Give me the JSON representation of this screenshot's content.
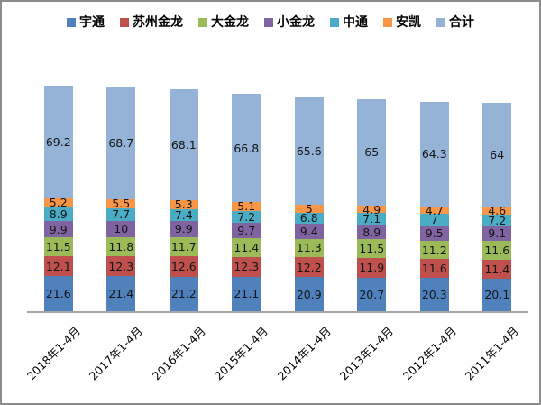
{
  "chart_data": {
    "type": "bar",
    "stacked": true,
    "title": "",
    "xlabel": "",
    "ylabel": "",
    "legend_position": "top",
    "grid": false,
    "y_axis_visible": false,
    "categories": [
      "2018年1-4月",
      "2017年1-4月",
      "2016年1-4月",
      "2015年1-4月",
      "2014年1-4月",
      "2013年1-4月",
      "2012年1-4月",
      "2011年1-4月"
    ],
    "series": [
      {
        "name": "宇通",
        "color": "#4F81BD",
        "values": [
          21.6,
          21.4,
          21.2,
          21.1,
          20.9,
          20.7,
          20.3,
          20.1
        ]
      },
      {
        "name": "苏州金龙",
        "color": "#C0504D",
        "values": [
          12.1,
          12.3,
          12.6,
          12.3,
          12.2,
          11.9,
          11.6,
          11.4
        ]
      },
      {
        "name": "大金龙",
        "color": "#9BBB59",
        "values": [
          11.5,
          11.8,
          11.7,
          11.4,
          11.3,
          11.5,
          11.2,
          11.6
        ]
      },
      {
        "name": "小金龙",
        "color": "#8064A2",
        "values": [
          9.9,
          10,
          9.9,
          9.7,
          9.4,
          8.9,
          9.5,
          9.1
        ]
      },
      {
        "name": "中通",
        "color": "#4BACC6",
        "values": [
          8.9,
          7.7,
          7.4,
          7.2,
          6.8,
          7.1,
          7,
          7.2
        ]
      },
      {
        "name": "安凯",
        "color": "#F79646",
        "values": [
          5.2,
          5.5,
          5.3,
          5.1,
          5,
          4.9,
          4.7,
          4.6
        ]
      },
      {
        "name": "合计",
        "color": "#95B3D7",
        "values": [
          69.2,
          68.7,
          68.1,
          66.8,
          65.6,
          65,
          64.3,
          64
        ]
      }
    ],
    "colors": {
      "data_label": "#141414",
      "axis_line": "#A6A6A6",
      "frame_border": "#8C8C8C"
    }
  }
}
